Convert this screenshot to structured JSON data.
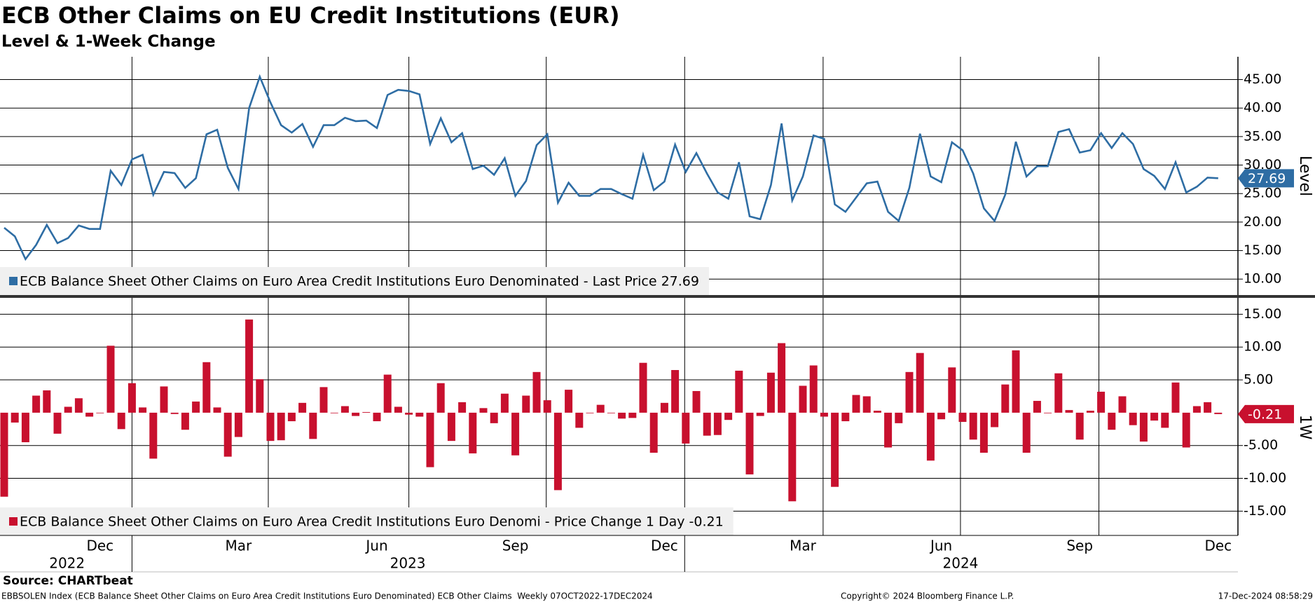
{
  "title": "ECB Other Claims on EU Credit Institutions (EUR)",
  "subtitle": "Level & 1-Week Change",
  "x_axis": {
    "categories": [
      null,
      null,
      null,
      null,
      null,
      null,
      null,
      null,
      null,
      "Dec",
      null,
      null,
      null,
      null,
      null,
      null,
      null,
      null,
      null,
      null,
      null,
      null,
      "Mar",
      null,
      null,
      null,
      null,
      null,
      null,
      null,
      null,
      null,
      null,
      null,
      null,
      "Jun",
      null,
      null,
      null,
      null,
      null,
      null,
      null,
      null,
      null,
      null,
      null,
      null,
      "Sep",
      null,
      null,
      null,
      null,
      null,
      null,
      null,
      null,
      null,
      null,
      null,
      null,
      null,
      "Dec",
      null,
      null,
      null,
      null,
      null,
      null,
      null,
      null,
      null,
      null,
      null,
      null,
      "Mar",
      null,
      null,
      null,
      null,
      null,
      null,
      null,
      null,
      null,
      null,
      null,
      null,
      "Jun",
      null,
      null,
      null,
      null,
      null,
      null,
      null,
      null,
      null,
      null,
      null,
      null,
      "Sep",
      null,
      null,
      null,
      null,
      null,
      null,
      null,
      null,
      null,
      null,
      null,
      null,
      "Dec",
      null
    ],
    "years": [
      "2022",
      "2023",
      "2024"
    ]
  },
  "chart_data": [
    {
      "type": "line",
      "y_label": "Level",
      "grid": true,
      "ylim": [
        7.2,
        49
      ],
      "yticks": [
        {
          "value": 10,
          "label": "10.00"
        },
        {
          "value": 15,
          "label": "15.00"
        },
        {
          "value": 20,
          "label": "20.00"
        },
        {
          "value": 25,
          "label": "25.00"
        },
        {
          "value": 30,
          "label": "30.00"
        },
        {
          "value": 35,
          "label": "35.00"
        },
        {
          "value": 40,
          "label": "40.00"
        },
        {
          "value": 45,
          "label": "45.00"
        }
      ],
      "series": [
        {
          "name": "ECB Balance Sheet Other Claims on Euro Area Credit Institutions Euro Denominated - Last Price 27.69",
          "color": "#2e6da4",
          "values": [
            19,
            17.5,
            13.5,
            16,
            19.5,
            16.3,
            17.2,
            19.4,
            18.8,
            18.8,
            29,
            26.5,
            31,
            31.8,
            24.8,
            28.8,
            28.6,
            26,
            27.7,
            35.4,
            36.2,
            29.5,
            25.8,
            40,
            45.5,
            41,
            37,
            35.7,
            37.2,
            33.2,
            37,
            37,
            38.3,
            37.7,
            37.8,
            36.5,
            42.3,
            43.2,
            43,
            42.4,
            33.7,
            38.2,
            34,
            35.6,
            29.3,
            29.9,
            28.3,
            31.2,
            24.6,
            27.2,
            33.5,
            35.4,
            23.4,
            26.9,
            24.6,
            24.6,
            25.8,
            25.8,
            24.9,
            24.1,
            31.8,
            25.6,
            27.1,
            33.6,
            28.8,
            32.1,
            28.5,
            25.2,
            24.1,
            30.5,
            21,
            20.5,
            26.5,
            37.3,
            23.8,
            28,
            35.2,
            34.6,
            23.1,
            21.8,
            24.3,
            26.8,
            27.1,
            21.8,
            20.2,
            26,
            35.5,
            28,
            27,
            34,
            32.6,
            28.5,
            22.4,
            20.2,
            24.8,
            34.1,
            28,
            29.8,
            29.8,
            35.8,
            36.3,
            32.2,
            32.6,
            35.6,
            33,
            35.6,
            33.7,
            29.3,
            28.1,
            25.8,
            30.5,
            25.2,
            26.2,
            27.8,
            27.69
          ]
        }
      ]
    },
    {
      "type": "bar",
      "y_label": "1W",
      "grid": true,
      "ylim": [
        -18.7,
        17.5
      ],
      "yticks": [
        {
          "value": -15,
          "label": "-15.00"
        },
        {
          "value": -10,
          "label": "-10.00"
        },
        {
          "value": -5,
          "label": "-5.00"
        },
        {
          "value": 5,
          "label": "5.00"
        },
        {
          "value": 10,
          "label": "10.00"
        },
        {
          "value": 15,
          "label": "15.00"
        }
      ],
      "series": [
        {
          "name": "ECB Balance Sheet Other Claims on Euro Area Credit Institutions Euro Denomi - Price Change 1 Day -0.21",
          "color": "#c8102e",
          "values": [
            -12.8,
            -1.5,
            -4.5,
            2.6,
            3.4,
            -3.2,
            0.9,
            2.2,
            -0.6,
            0,
            10.2,
            -2.5,
            4.5,
            0.8,
            -7,
            4,
            -0.2,
            -2.6,
            1.7,
            7.7,
            0.8,
            -6.7,
            -3.7,
            14.2,
            5.1,
            -4.3,
            -4.2,
            -1.3,
            1.5,
            -4,
            3.9,
            0,
            1,
            -0.5,
            0.1,
            -1.3,
            5.8,
            0.9,
            -0.3,
            -0.6,
            -8.3,
            4.5,
            -4.3,
            1.6,
            -6.2,
            0.7,
            -1.6,
            2.9,
            -6.5,
            2.6,
            6.2,
            1.9,
            -11.8,
            3.5,
            -2.3,
            0,
            1.2,
            0,
            -0.9,
            -0.8,
            7.6,
            -6.1,
            1.5,
            6.5,
            -4.7,
            3.3,
            -3.5,
            -3.4,
            -1.1,
            6.4,
            -9.4,
            -0.5,
            6.1,
            10.6,
            -13.5,
            4.1,
            7.2,
            -0.6,
            -11.3,
            -1.3,
            2.7,
            2.5,
            0.3,
            -5.3,
            -1.6,
            6.2,
            9.1,
            -7.3,
            -1,
            6.9,
            -1.4,
            -4.1,
            -6.1,
            -2.2,
            4.3,
            9.5,
            -6.1,
            1.8,
            0,
            6,
            0.4,
            -4.1,
            0.3,
            3.2,
            -2.6,
            2.5,
            -1.9,
            -4.4,
            -1.2,
            -2.3,
            4.6,
            -5.3,
            1,
            1.6,
            -0.21
          ]
        }
      ]
    }
  ],
  "source": "Source: CHARTbeat",
  "footer_left": "EBBSOLEN Index (ECB Balance Sheet Other Claims on Euro Area Credit Institutions Euro Denominated) ECB Other Claims  Weekly 07OCT2022-17DEC2024",
  "copyright": "Copyright© 2024 Bloomberg Finance L.P.",
  "timestamp": "17-Dec-2024 08:58:29"
}
